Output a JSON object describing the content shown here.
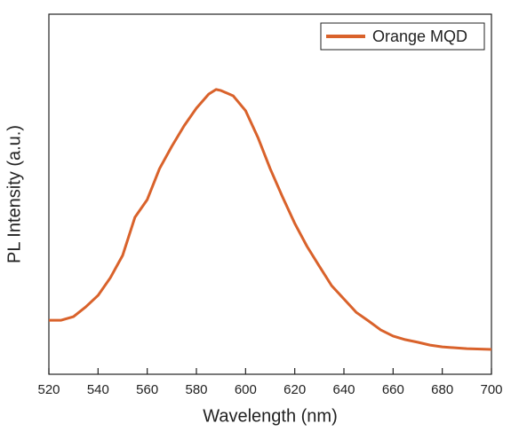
{
  "chart_data": {
    "type": "line",
    "xlabel": "Wavelength (nm)",
    "ylabel": "PL Intensity (a.u.)",
    "x": [
      520,
      525,
      530,
      535,
      540,
      545,
      550,
      555,
      560,
      565,
      570,
      575,
      580,
      585,
      588,
      590,
      595,
      600,
      605,
      610,
      615,
      620,
      625,
      630,
      635,
      640,
      645,
      650,
      655,
      660,
      665,
      670,
      675,
      680,
      690,
      700
    ],
    "series": [
      {
        "name": "Orange MQD",
        "color": "#d9622b",
        "values": [
          0.15,
          0.15,
          0.16,
          0.187,
          0.219,
          0.268,
          0.33,
          0.436,
          0.485,
          0.571,
          0.633,
          0.69,
          0.739,
          0.778,
          0.791,
          0.788,
          0.773,
          0.732,
          0.658,
          0.571,
          0.493,
          0.419,
          0.355,
          0.3,
          0.246,
          0.209,
          0.172,
          0.148,
          0.123,
          0.106,
          0.096,
          0.089,
          0.081,
          0.076,
          0.071,
          0.069
        ]
      }
    ],
    "xlim": [
      520,
      700
    ],
    "xticks": [
      520,
      540,
      560,
      580,
      600,
      620,
      640,
      660,
      680,
      700
    ],
    "ylim": [
      0,
      1
    ],
    "legend": "upper right"
  }
}
